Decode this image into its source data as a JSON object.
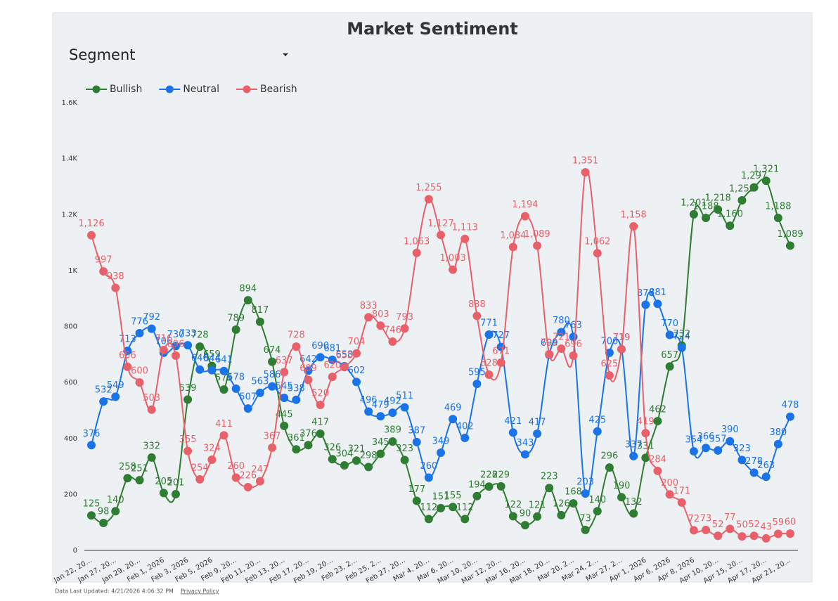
{
  "header": {
    "dropdown": "Segment"
  },
  "footer": {
    "updated": "Data Last Updated: 4/21/2026 4:06:32 PM",
    "privacy": "Privacy Policy"
  },
  "chart_data": {
    "type": "line",
    "title": "Market Sentiment",
    "categories": [
      "Jan 22, 20…",
      null,
      "Jan 27, 20…",
      null,
      "Jan 29, 20…",
      null,
      "Feb 1, 2026",
      null,
      "Feb 3, 2026",
      null,
      "Feb 5, 2026",
      null,
      "Feb 9, 20…",
      null,
      "Feb 11, 20…",
      null,
      "Feb 13, 20…",
      null,
      "Feb 17, 20…",
      null,
      "Feb 19, 20…",
      null,
      "Feb 23, 2…",
      null,
      "Feb 25, 2…",
      null,
      "Feb 27, 20…",
      null,
      "Mar 4, 20…",
      null,
      "Mar 6, 20…",
      null,
      "Mar 10, 20…",
      null,
      "Mar 12, 20…",
      null,
      "Mar 16, 20…",
      null,
      "Mar 18, 20…",
      null,
      "Mar 20, 2…",
      null,
      "Mar 24, 2…",
      null,
      "Mar 27, 2…",
      null,
      "Apr 1, 2026",
      null,
      "Apr 6, 2026",
      null,
      "Apr 8, 2026",
      null,
      "Apr 10, 20…",
      null,
      "Apr 15, 20…",
      null,
      "Apr 17, 20…",
      null,
      "Apr 21, 20…"
    ],
    "series": [
      {
        "name": "Bullish",
        "color": "#2e7d32",
        "values": [
          125,
          98,
          140,
          258,
          251,
          332,
          205,
          201,
          539,
          728,
          659,
          575,
          789,
          894,
          817,
          674,
          445,
          361,
          376,
          417,
          326,
          304,
          321,
          298,
          345,
          389,
          323,
          177,
          112,
          151,
          155,
          112,
          194,
          228,
          229,
          122,
          90,
          121,
          223,
          126,
          168,
          73,
          140,
          296,
          190,
          132,
          331,
          462,
          657,
          732,
          1201,
          1188,
          1218,
          1160,
          1251,
          1297,
          1321,
          1188,
          1089
        ],
        "value_labels": [
          "125",
          "98",
          "140",
          "258",
          "251",
          "332",
          "205",
          "201",
          "539",
          "728",
          "659",
          "575",
          "789",
          "894",
          "817",
          "674",
          "445",
          "361",
          "376",
          "417",
          "326",
          "304",
          "321",
          "298",
          "345",
          "389",
          "323",
          "177",
          "112",
          "151",
          "155",
          "112",
          "194",
          "228",
          "229",
          "122",
          "90",
          "121",
          "223",
          "126",
          "168",
          "73",
          "140",
          "296",
          "190",
          "132",
          "331",
          "462",
          "657",
          "732",
          "1,201",
          "1,188",
          "1,218",
          "1,160",
          "1,251",
          "1,297",
          "1,321",
          "1,188",
          "1,089"
        ]
      },
      {
        "name": "Neutral",
        "color": "#1a73e8",
        "values": [
          376,
          532,
          549,
          713,
          776,
          792,
          706,
          730,
          733,
          646,
          644,
          641,
          578,
          507,
          563,
          586,
          545,
          538,
          642,
          690,
          681,
          658,
          602,
          496,
          479,
          492,
          511,
          387,
          260,
          349,
          469,
          402,
          595,
          771,
          727,
          421,
          343,
          417,
          699,
          780,
          763,
          203,
          425,
          706,
          719,
          337,
          878,
          881,
          770,
          724,
          354,
          366,
          357,
          390,
          323,
          278,
          263,
          380,
          478
        ]
      },
      {
        "name": "Bearish",
        "color": "#e8606a",
        "values": [
          1126,
          997,
          938,
          656,
          600,
          503,
          716,
          696,
          355,
          254,
          324,
          411,
          260,
          226,
          247,
          367,
          637,
          728,
          609,
          520,
          620,
          655,
          704,
          833,
          803,
          746,
          793,
          1063,
          1255,
          1127,
          1003,
          1113,
          838,
          628,
          671,
          1084,
          1194,
          1089,
          701,
          721,
          696,
          1351,
          1062,
          625,
          719,
          1158,
          419,
          284,
          200,
          171,
          72,
          73,
          52,
          77,
          50,
          52,
          43,
          59,
          60
        ],
        "value_labels": [
          "1,126",
          "997",
          "938",
          "656",
          "600",
          "503",
          "716",
          "696",
          "355",
          "254",
          "324",
          "411",
          "260",
          "226",
          "247",
          "367",
          "637",
          "728",
          "609",
          "520",
          "620",
          "655",
          "704",
          "833",
          "803",
          "746",
          "793",
          "1,063",
          "1,255",
          "1,127",
          "1,003",
          "1,113",
          "838",
          "628",
          "671",
          "1,084",
          "1,194",
          "1,089",
          "701",
          "721",
          "696",
          "1,351",
          "1,062",
          "625",
          "719",
          "1,158",
          "419",
          "284",
          "200",
          "171",
          "72",
          "73",
          "52",
          "77",
          "50",
          "52",
          "43",
          "59",
          "60"
        ]
      }
    ],
    "ylim": [
      0,
      1600
    ],
    "yticks": [
      0,
      200,
      400,
      600,
      800,
      {
        "value": 1000,
        "label": "1K"
      },
      {
        "value": 1200,
        "label": "1.2K"
      },
      {
        "value": 1400,
        "label": "1.4K"
      },
      {
        "value": 1600,
        "label": "1.6K"
      }
    ],
    "grid": false,
    "legend": "top-left"
  }
}
